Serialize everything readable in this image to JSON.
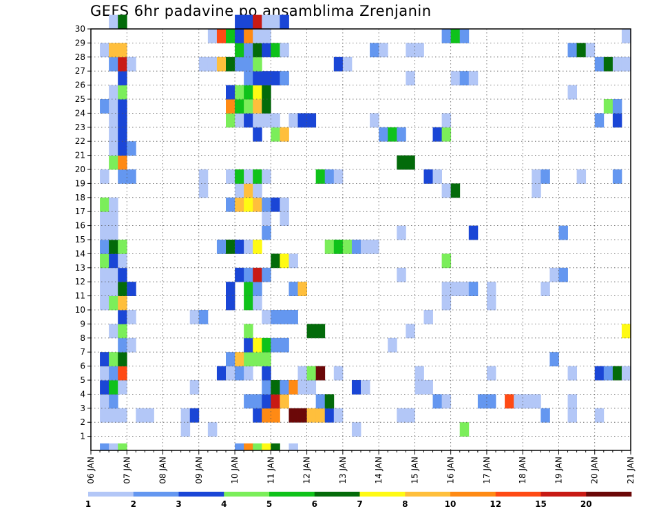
{
  "title": "GEFS 6hr padavine po ansamblima Zrenjanin",
  "chart_data": {
    "type": "heatmap",
    "title": "GEFS 6hr padavine po ansamblima Zrenjanin",
    "xlabel": "",
    "ylabel": "",
    "y_ticks": [
      "1",
      "2",
      "3",
      "4",
      "5",
      "6",
      "7",
      "8",
      "9",
      "10",
      "11",
      "12",
      "13",
      "14",
      "15",
      "16",
      "17",
      "18",
      "19",
      "20",
      "21",
      "22",
      "23",
      "24",
      "25",
      "26",
      "27",
      "28",
      "29",
      "30"
    ],
    "x_ticks": [
      "06 JAN",
      "07 JAN",
      "08 JAN",
      "09 JAN",
      "10 JAN",
      "11 JAN",
      "12 JAN",
      "13 JAN",
      "14 JAN",
      "15 JAN",
      "16 JAN",
      "17 JAN",
      "18 JAN",
      "19 JAN",
      "20 JAN",
      "21 JAN"
    ],
    "x_range_days": [
      6,
      21
    ],
    "y_range": [
      0,
      30
    ],
    "time_step_hours": 6,
    "grid": "dotted",
    "colorbar": {
      "position": "bottom",
      "labels": [
        "1",
        "2",
        "3",
        "4",
        "5",
        "6",
        "7",
        "8",
        "10",
        "12",
        "15",
        "20"
      ],
      "colors": [
        "#b3c7f7",
        "#6497f0",
        "#1a46d6",
        "#7bee5a",
        "#0fc21a",
        "#036b0a",
        "#fffa14",
        "#ffbf3c",
        "#ff8a14",
        "#ff4a14",
        "#c81a14",
        "#6b0808"
      ]
    },
    "cell_levels": {
      "1": [
        [
          10,
          1
        ],
        [
          13,
          1
        ],
        [
          29,
          1
        ],
        [
          41,
          4
        ]
      ],
      "2": [
        [
          1,
          1
        ],
        [
          2,
          1
        ],
        [
          3,
          1
        ],
        [
          5,
          1
        ],
        [
          6,
          1
        ],
        [
          10,
          1
        ],
        [
          11,
          3
        ],
        [
          18,
          3
        ],
        [
          19,
          9
        ],
        [
          20,
          9
        ],
        [
          22,
          12
        ],
        [
          23,
          12
        ],
        [
          24,
          8
        ],
        [
          25,
          8
        ],
        [
          26,
          3
        ],
        [
          27,
          1
        ],
        [
          34,
          1
        ],
        [
          35,
          1
        ],
        [
          50,
          2
        ],
        [
          53,
          1
        ],
        [
          56,
          1
        ]
      ],
      "3": [
        [
          1,
          1
        ],
        [
          2,
          2
        ],
        [
          17,
          2
        ],
        [
          18,
          2
        ],
        [
          19,
          3
        ],
        [
          20,
          11
        ],
        [
          21,
          8
        ],
        [
          25,
          2
        ],
        [
          26,
          6
        ],
        [
          38,
          2
        ],
        [
          39,
          1
        ],
        [
          43,
          2
        ],
        [
          44,
          2
        ],
        [
          46,
          10
        ],
        [
          47,
          1
        ],
        [
          48,
          1
        ],
        [
          49,
          1
        ],
        [
          53,
          1
        ]
      ],
      "4": [
        [
          1,
          3
        ],
        [
          2,
          5
        ],
        [
          3,
          1
        ],
        [
          11,
          1
        ],
        [
          19,
          2
        ],
        [
          20,
          6
        ],
        [
          21,
          2
        ],
        [
          22,
          9
        ],
        [
          23,
          1
        ],
        [
          24,
          1
        ],
        [
          29,
          3
        ],
        [
          30,
          1
        ],
        [
          36,
          1
        ],
        [
          37,
          1
        ]
      ],
      "5": [
        [
          1,
          1
        ],
        [
          2,
          2
        ],
        [
          3,
          10
        ],
        [
          14,
          3
        ],
        [
          15,
          1
        ],
        [
          16,
          2
        ],
        [
          17,
          1
        ],
        [
          19,
          3
        ],
        [
          23,
          1
        ],
        [
          24,
          4
        ],
        [
          25,
          12
        ],
        [
          27,
          1
        ],
        [
          36,
          1
        ],
        [
          44,
          1
        ],
        [
          53,
          1
        ],
        [
          56,
          3
        ],
        [
          57,
          2
        ],
        [
          58,
          6
        ],
        [
          59,
          1
        ]
      ],
      "6": [
        [
          1,
          3
        ],
        [
          2,
          4
        ],
        [
          3,
          6
        ],
        [
          15,
          2
        ],
        [
          16,
          8
        ],
        [
          17,
          4
        ],
        [
          18,
          4
        ],
        [
          19,
          4
        ],
        [
          51,
          2
        ]
      ],
      "7": [
        [
          3,
          2
        ],
        [
          4,
          1
        ],
        [
          17,
          3
        ],
        [
          18,
          7
        ],
        [
          19,
          5
        ],
        [
          20,
          2
        ],
        [
          21,
          2
        ],
        [
          33,
          1
        ]
      ],
      "8": [
        [
          2,
          1
        ],
        [
          3,
          4
        ],
        [
          17,
          4
        ],
        [
          24,
          6
        ],
        [
          25,
          6
        ],
        [
          35,
          1
        ],
        [
          59,
          7
        ]
      ],
      "9": [
        [
          3,
          3
        ],
        [
          4,
          1
        ],
        [
          11,
          1
        ],
        [
          12,
          2
        ],
        [
          19,
          1
        ],
        [
          20,
          2
        ],
        [
          21,
          2
        ],
        [
          22,
          2
        ],
        [
          37,
          1
        ]
      ],
      "10": [
        [
          1,
          1
        ],
        [
          2,
          4
        ],
        [
          3,
          8
        ],
        [
          15,
          3
        ],
        [
          17,
          5
        ],
        [
          18,
          1
        ],
        [
          39,
          1
        ],
        [
          44,
          1
        ]
      ],
      "11": [
        [
          1,
          1
        ],
        [
          2,
          1
        ],
        [
          3,
          6
        ],
        [
          4,
          3
        ],
        [
          15,
          3
        ],
        [
          17,
          5
        ],
        [
          18,
          2
        ],
        [
          22,
          2
        ],
        [
          23,
          8
        ],
        [
          39,
          1
        ],
        [
          40,
          1
        ],
        [
          41,
          1
        ],
        [
          42,
          2
        ],
        [
          44,
          1
        ],
        [
          50,
          1
        ]
      ],
      "12": [
        [
          1,
          1
        ],
        [
          2,
          1
        ],
        [
          3,
          3
        ],
        [
          16,
          3
        ],
        [
          17,
          2
        ],
        [
          18,
          11
        ],
        [
          19,
          2
        ],
        [
          34,
          1
        ],
        [
          51,
          1
        ],
        [
          52,
          2
        ]
      ],
      "13": [
        [
          1,
          4
        ],
        [
          2,
          3
        ],
        [
          3,
          1
        ],
        [
          20,
          6
        ],
        [
          21,
          7
        ],
        [
          22,
          1
        ],
        [
          39,
          4
        ]
      ],
      "14": [
        [
          1,
          2
        ],
        [
          2,
          6
        ],
        [
          3,
          4
        ],
        [
          14,
          2
        ],
        [
          15,
          6
        ],
        [
          16,
          3
        ],
        [
          17,
          1
        ],
        [
          18,
          7
        ],
        [
          26,
          4
        ],
        [
          27,
          5
        ],
        [
          28,
          4
        ],
        [
          29,
          2
        ],
        [
          30,
          1
        ],
        [
          31,
          1
        ]
      ],
      "15": [
        [
          1,
          1
        ],
        [
          2,
          1
        ],
        [
          19,
          2
        ],
        [
          34,
          1
        ],
        [
          42,
          3
        ],
        [
          52,
          2
        ]
      ],
      "16": [
        [
          1,
          1
        ],
        [
          2,
          1
        ],
        [
          19,
          1
        ],
        [
          21,
          1
        ]
      ],
      "17": [
        [
          1,
          4
        ],
        [
          2,
          1
        ],
        [
          15,
          2
        ],
        [
          16,
          8
        ],
        [
          17,
          7
        ],
        [
          18,
          8
        ],
        [
          19,
          2
        ],
        [
          20,
          3
        ],
        [
          21,
          1
        ]
      ],
      "18": [
        [
          12,
          1
        ],
        [
          16,
          1
        ],
        [
          17,
          8
        ],
        [
          18,
          1
        ],
        [
          39,
          1
        ],
        [
          40,
          6
        ],
        [
          49,
          1
        ]
      ],
      "19": [
        [
          1,
          1
        ],
        [
          3,
          2
        ],
        [
          4,
          2
        ],
        [
          12,
          1
        ],
        [
          15,
          1
        ],
        [
          16,
          5
        ],
        [
          17,
          1
        ],
        [
          18,
          5
        ],
        [
          19,
          1
        ],
        [
          25,
          5
        ],
        [
          26,
          2
        ],
        [
          27,
          1
        ],
        [
          37,
          3
        ],
        [
          38,
          1
        ],
        [
          49,
          1
        ],
        [
          50,
          2
        ],
        [
          54,
          1
        ],
        [
          58,
          2
        ]
      ],
      "20": [
        [
          2,
          4
        ],
        [
          3,
          9
        ],
        [
          34,
          6
        ],
        [
          35,
          6
        ]
      ],
      "21": [
        [
          2,
          1
        ],
        [
          3,
          3
        ],
        [
          4,
          2
        ]
      ],
      "22": [
        [
          2,
          1
        ],
        [
          3,
          3
        ],
        [
          18,
          3
        ],
        [
          20,
          4
        ],
        [
          21,
          8
        ],
        [
          32,
          2
        ],
        [
          33,
          5
        ],
        [
          34,
          2
        ],
        [
          38,
          3
        ],
        [
          39,
          4
        ]
      ],
      "23": [
        [
          2,
          1
        ],
        [
          3,
          3
        ],
        [
          15,
          4
        ],
        [
          16,
          1
        ],
        [
          17,
          3
        ],
        [
          18,
          1
        ],
        [
          19,
          1
        ],
        [
          20,
          1
        ],
        [
          22,
          1
        ],
        [
          23,
          3
        ],
        [
          24,
          3
        ],
        [
          31,
          1
        ],
        [
          39,
          1
        ],
        [
          56,
          2
        ],
        [
          58,
          3
        ]
      ],
      "24": [
        [
          1,
          2
        ],
        [
          2,
          1
        ],
        [
          3,
          3
        ],
        [
          15,
          9
        ],
        [
          16,
          5
        ],
        [
          17,
          4
        ],
        [
          18,
          8
        ],
        [
          19,
          6
        ],
        [
          57,
          4
        ],
        [
          58,
          2
        ]
      ],
      "25": [
        [
          2,
          1
        ],
        [
          3,
          4
        ],
        [
          15,
          3
        ],
        [
          16,
          4
        ],
        [
          17,
          5
        ],
        [
          18,
          7
        ],
        [
          19,
          6
        ],
        [
          53,
          1
        ]
      ],
      "26": [
        [
          3,
          3
        ],
        [
          17,
          2
        ],
        [
          18,
          3
        ],
        [
          19,
          3
        ],
        [
          20,
          3
        ],
        [
          21,
          2
        ],
        [
          35,
          1
        ],
        [
          40,
          1
        ],
        [
          41,
          2
        ],
        [
          42,
          1
        ]
      ],
      "27": [
        [
          2,
          2
        ],
        [
          3,
          11
        ],
        [
          4,
          1
        ],
        [
          12,
          1
        ],
        [
          13,
          1
        ],
        [
          14,
          8
        ],
        [
          15,
          6
        ],
        [
          16,
          2
        ],
        [
          17,
          2
        ],
        [
          18,
          4
        ],
        [
          27,
          3
        ],
        [
          28,
          1
        ],
        [
          56,
          2
        ],
        [
          57,
          6
        ],
        [
          58,
          1
        ],
        [
          59,
          1
        ]
      ],
      "28": [
        [
          1,
          1
        ],
        [
          2,
          8
        ],
        [
          3,
          8
        ],
        [
          16,
          5
        ],
        [
          17,
          2
        ],
        [
          18,
          6
        ],
        [
          19,
          3
        ],
        [
          20,
          5
        ],
        [
          21,
          1
        ],
        [
          31,
          2
        ],
        [
          32,
          1
        ],
        [
          35,
          1
        ],
        [
          36,
          1
        ],
        [
          53,
          2
        ],
        [
          54,
          6
        ],
        [
          55,
          1
        ]
      ],
      "29": [
        [
          13,
          1
        ],
        [
          14,
          10
        ],
        [
          15,
          5
        ],
        [
          16,
          3
        ],
        [
          17,
          9
        ],
        [
          18,
          1
        ],
        [
          19,
          1
        ],
        [
          39,
          2
        ],
        [
          40,
          5
        ],
        [
          41,
          2
        ],
        [
          59,
          1
        ]
      ],
      "30": [
        [
          2,
          1
        ],
        [
          3,
          6
        ],
        [
          16,
          3
        ],
        [
          17,
          3
        ],
        [
          18,
          11
        ],
        [
          19,
          1
        ],
        [
          20,
          1
        ],
        [
          21,
          3
        ]
      ],
      "0": [
        [
          1,
          2
        ],
        [
          2,
          1
        ],
        [
          3,
          4
        ],
        [
          16,
          2
        ],
        [
          17,
          9
        ],
        [
          18,
          4
        ],
        [
          19,
          7
        ],
        [
          20,
          6
        ],
        [
          22,
          1
        ]
      ]
    }
  }
}
